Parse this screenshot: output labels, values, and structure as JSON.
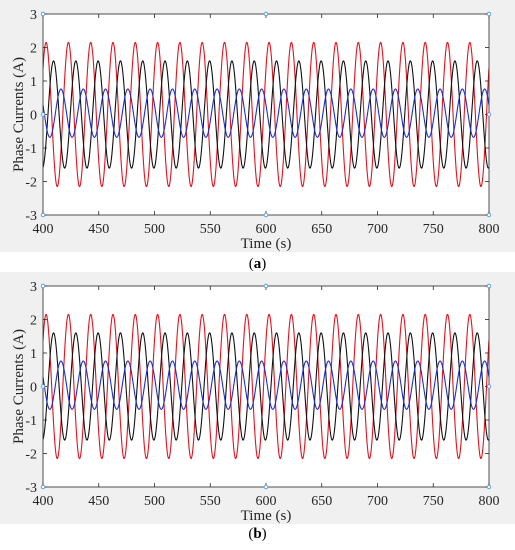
{
  "chart_data": [
    {
      "type": "line",
      "xlabel": "Time (s)",
      "ylabel": "Phase Currents (A)",
      "xlim": [
        400,
        800
      ],
      "ylim": [
        -3,
        3
      ],
      "xticks": [
        400,
        450,
        500,
        550,
        600,
        650,
        700,
        750,
        800
      ],
      "yticks": [
        -3,
        -2,
        -1,
        0,
        1,
        2,
        3
      ],
      "grid": false,
      "caption_prefix": "(",
      "caption_letter": "a",
      "caption_suffix": ")",
      "series": [
        {
          "color": "#e8101c",
          "amplitude": 2.15,
          "offset": 0,
          "cycles": 20,
          "phase_deg": 40,
          "x_start": 400,
          "x_end": 800
        },
        {
          "color": "#111111",
          "amplitude": 1.6,
          "offset": 0,
          "cycles": 20,
          "phase_deg": -80,
          "x_start": 400,
          "x_end": 800
        },
        {
          "color": "#1a2fd0",
          "amplitude": 0.72,
          "offset": 0.04,
          "cycles": 20,
          "phase_deg": 160,
          "x_start": 400,
          "x_end": 800
        }
      ]
    },
    {
      "type": "line",
      "xlabel": "Time (s)",
      "ylabel": "Phase Currents (A)",
      "xlim": [
        400,
        800
      ],
      "ylim": [
        -3,
        3
      ],
      "xticks": [
        400,
        450,
        500,
        550,
        600,
        650,
        700,
        750,
        800
      ],
      "yticks": [
        -3,
        -2,
        -1,
        0,
        1,
        2,
        3
      ],
      "grid": false,
      "caption_prefix": "(",
      "caption_letter": "b",
      "caption_suffix": ")",
      "series": [
        {
          "color": "#e8101c",
          "amplitude": 2.15,
          "offset": 0,
          "cycles": 20,
          "phase_deg": 40,
          "x_start": 400,
          "x_end": 800
        },
        {
          "color": "#111111",
          "amplitude": 1.6,
          "offset": 0,
          "cycles": 20,
          "phase_deg": -80,
          "x_start": 400,
          "x_end": 800
        },
        {
          "color": "#1a2fd0",
          "amplitude": 0.72,
          "offset": 0.04,
          "cycles": 20,
          "phase_deg": 160,
          "x_start": 400,
          "x_end": 800
        }
      ]
    }
  ]
}
